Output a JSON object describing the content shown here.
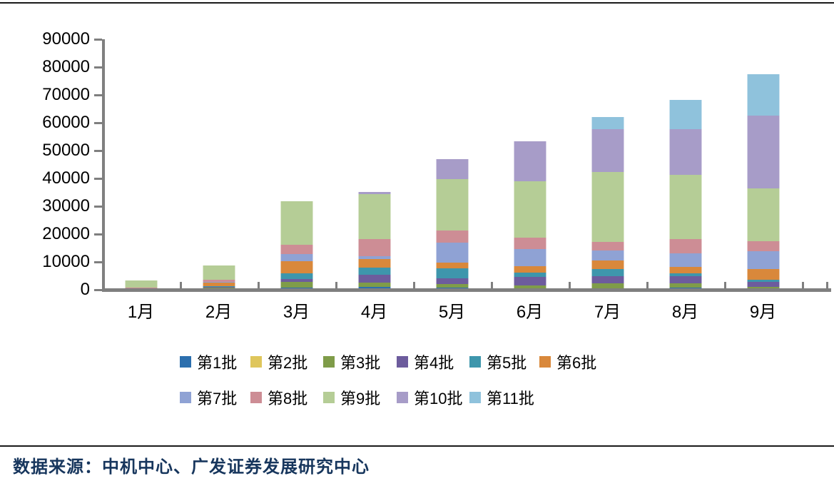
{
  "source_note": "数据来源：中机中心、广发证券发展研究中心",
  "chart_data": {
    "type": "bar",
    "stacked": true,
    "title": "",
    "xlabel": "",
    "ylabel": "",
    "grid": false,
    "legend_position": "bottom",
    "ylim": [
      0,
      90000
    ],
    "ytick_step": 10000,
    "y_ticks": [
      90000,
      80000,
      70000,
      60000,
      50000,
      40000,
      30000,
      20000,
      10000,
      0
    ],
    "categories": [
      "1月",
      "2月",
      "3月",
      "4月",
      "5月",
      "6月",
      "7月",
      "8月",
      "9月"
    ],
    "series": [
      {
        "name": "第1批",
        "color": "#2c6fae",
        "values": [
          0,
          300,
          700,
          950,
          800,
          500,
          600,
          700,
          300
        ]
      },
      {
        "name": "第2批",
        "color": "#dfc65c",
        "values": [
          0,
          0,
          0,
          0,
          0,
          0,
          0,
          0,
          0
        ]
      },
      {
        "name": "第3批",
        "color": "#7f9c49",
        "values": [
          0,
          400,
          2100,
          1550,
          1300,
          1100,
          1650,
          1550,
          700
        ]
      },
      {
        "name": "第4批",
        "color": "#6d5c9d",
        "values": [
          0,
          400,
          1150,
          3000,
          2100,
          3000,
          2550,
          2550,
          1700
        ]
      },
      {
        "name": "第5批",
        "color": "#3e96ac",
        "values": [
          0,
          300,
          1900,
          2550,
          3400,
          1550,
          2550,
          1100,
          1000
        ]
      },
      {
        "name": "第6批",
        "color": "#d9883b",
        "values": [
          300,
          1100,
          4450,
          3000,
          2150,
          2300,
          3250,
          2300,
          3700
        ]
      },
      {
        "name": "第7批",
        "color": "#8fa2d4",
        "values": [
          0,
          350,
          2400,
          1050,
          7250,
          6150,
          3450,
          4950,
          6400
        ]
      },
      {
        "name": "第8批",
        "color": "#cd8d95",
        "values": [
          500,
          800,
          3400,
          6000,
          4300,
          4100,
          3250,
          5100,
          3650
        ]
      },
      {
        "name": "第9批",
        "color": "#b5cd96",
        "values": [
          2500,
          5000,
          15800,
          16300,
          18400,
          20300,
          25000,
          23100,
          19000
        ]
      },
      {
        "name": "第10批",
        "color": "#a79cc8",
        "values": [
          0,
          0,
          0,
          700,
          7250,
          14300,
          15400,
          16400,
          26100
        ]
      },
      {
        "name": "第11批",
        "color": "#8fc2dc",
        "values": [
          0,
          0,
          0,
          0,
          0,
          0,
          4450,
          10500,
          14950
        ]
      }
    ]
  }
}
